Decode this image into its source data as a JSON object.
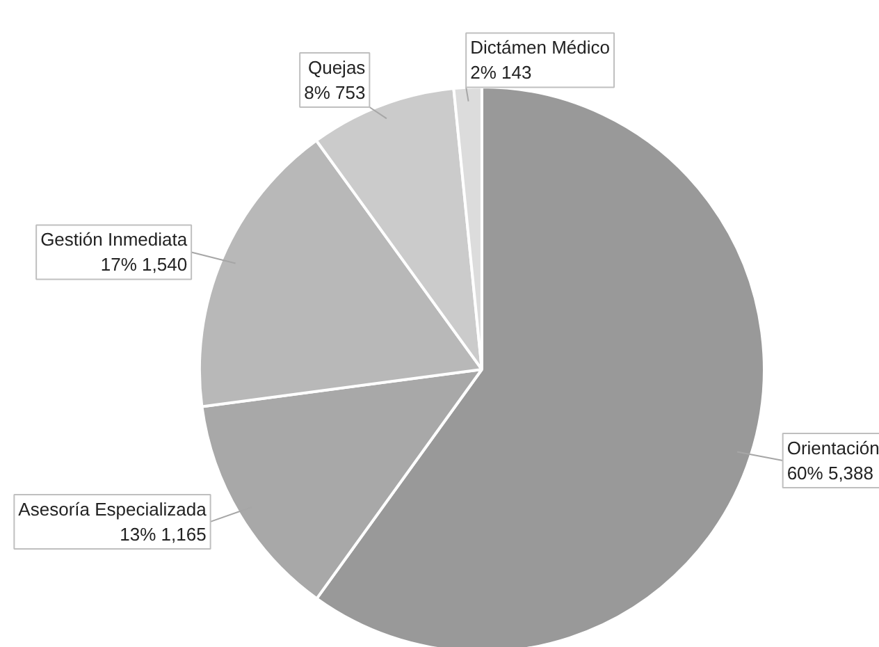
{
  "chart_data": {
    "type": "pie",
    "categories": [
      "Orientación",
      "Asesoría Especializada",
      "Gestión Inmediata",
      "Quejas",
      "Dictámen Médico"
    ],
    "values": [
      5388,
      1165,
      1540,
      753,
      143
    ],
    "value_labels": [
      "60% 5,388",
      "13% 1,165",
      "17% 1,540",
      "8% 753",
      "2% 143"
    ],
    "colors": [
      "#999999",
      "#a8a8a8",
      "#b8b8b8",
      "#cbcbcb",
      "#dcdcdc"
    ]
  }
}
